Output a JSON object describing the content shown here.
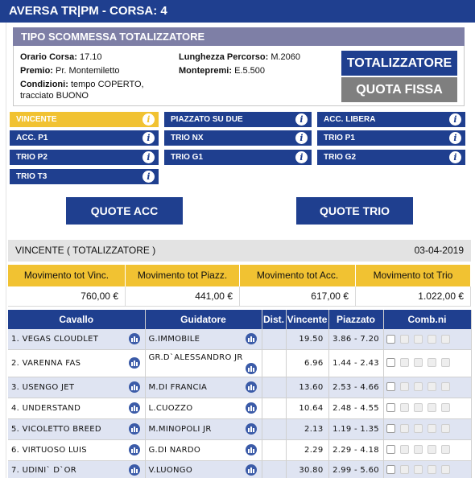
{
  "header": {
    "title": "AVERSA TR|PM - CORSA: 4"
  },
  "tipo": {
    "title": "TIPO SCOMMESSA TOTALIZZATORE",
    "orario_label": "Orario Corsa:",
    "orario_value": "17.10",
    "premio_label": "Premio:",
    "premio_value": "Pr. Montemiletto",
    "condizioni_label": "Condizioni:",
    "condizioni_value": "tempo COPERTO,",
    "condizioni_value2": "tracciato BUONO",
    "lunghezza_label": "Lunghezza Percorso:",
    "lunghezza_value": "M.2060",
    "montepremi_label": "Montepremi:",
    "montepremi_value": "E.5.500",
    "btn_totalizzatore": "TOTALIZZATORE",
    "btn_quota_fissa": "QUOTA FISSA"
  },
  "bets": [
    {
      "label": "VINCENTE",
      "active": true
    },
    {
      "label": "PIAZZATO SU DUE",
      "active": false
    },
    {
      "label": "ACC. LIBERA",
      "active": false
    },
    {
      "label": "ACC. P1",
      "active": false
    },
    {
      "label": "TRIO NX",
      "active": false
    },
    {
      "label": "TRIO P1",
      "active": false
    },
    {
      "label": "TRIO P2",
      "active": false
    },
    {
      "label": "TRIO G1",
      "active": false
    },
    {
      "label": "TRIO G2",
      "active": false
    },
    {
      "label": "TRIO T3",
      "active": false
    }
  ],
  "info_glyph": "i",
  "quote": {
    "acc": "QUOTE ACC",
    "trio": "QUOTE TRIO"
  },
  "vincente": {
    "title": "VINCENTE ( TOTALIZZATORE )",
    "date": "03-04-2019"
  },
  "movimento": {
    "headers": [
      "Movimento tot Vinc.",
      "Movimento tot Piazz.",
      "Movimento tot Acc.",
      "Movimento tot Trio"
    ],
    "values": [
      "760,00 €",
      "441,00 €",
      "617,00 €",
      "1.022,00 €"
    ]
  },
  "table": {
    "headers": {
      "cavallo": "Cavallo",
      "guidatore": "Guidatore",
      "dist": "Dist.",
      "vincente": "Vincente",
      "piazzato": "Piazzato",
      "comb": "Comb.ni"
    },
    "rows": [
      {
        "cavallo": "1. VEGAS CLOUDLET",
        "guidatore": "G.IMMOBILE",
        "guidatore2": "",
        "dist": "",
        "vincente": "19.50",
        "piazzato": "3.86 - 7.20"
      },
      {
        "cavallo": "2. VARENNA FAS",
        "guidatore": "GR.D`ALESSANDRO JR",
        "guidatore2": "",
        "dist": "",
        "vincente": "6.96",
        "piazzato": "1.44 - 2.43"
      },
      {
        "cavallo": "3. USENGO JET",
        "guidatore": "M.DI FRANCIA",
        "guidatore2": "",
        "dist": "",
        "vincente": "13.60",
        "piazzato": "2.53 - 4.66"
      },
      {
        "cavallo": "4. UNDERSTAND",
        "guidatore": "L.CUOZZO",
        "guidatore2": "",
        "dist": "",
        "vincente": "10.64",
        "piazzato": "2.48 - 4.55"
      },
      {
        "cavallo": "5. VICOLETTO BREED",
        "guidatore": "M.MINOPOLI JR",
        "guidatore2": "",
        "dist": "",
        "vincente": "2.13",
        "piazzato": "1.19 - 1.35"
      },
      {
        "cavallo": "6. VIRTUOSO LUIS",
        "guidatore": "G.DI NARDO",
        "guidatore2": "",
        "dist": "",
        "vincente": "2.29",
        "piazzato": "2.29 - 4.18"
      },
      {
        "cavallo": "7. UDINI` D`OR",
        "guidatore": "V.LUONGO",
        "guidatore2": "",
        "dist": "",
        "vincente": "30.80",
        "piazzato": "2.99 - 5.60"
      }
    ]
  },
  "colors": {
    "primary": "#1f3f8f",
    "accent": "#f1c232",
    "grey_button": "#7f7f7f",
    "section_header": "#7e7fa6"
  }
}
